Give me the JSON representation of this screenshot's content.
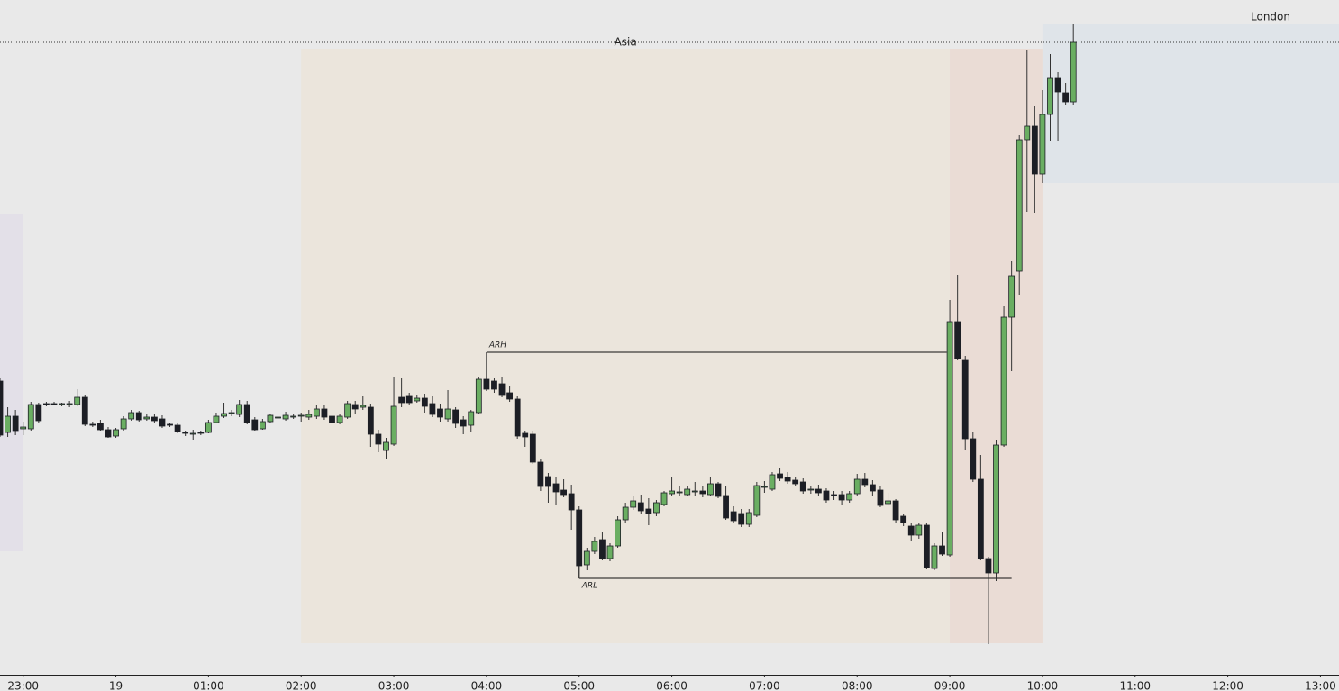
{
  "chart_data": {
    "type": "candlestick",
    "xlim": [
      -75,
      792
    ],
    "ylim": [
      51,
      800
    ],
    "xticks": [
      {
        "value": -60,
        "label": "23:00"
      },
      {
        "value": 0,
        "label": "19"
      },
      {
        "value": 60,
        "label": "01:00"
      },
      {
        "value": 120,
        "label": "02:00"
      },
      {
        "value": 180,
        "label": "03:00"
      },
      {
        "value": 240,
        "label": "04:00"
      },
      {
        "value": 300,
        "label": "05:00"
      },
      {
        "value": 360,
        "label": "06:00"
      },
      {
        "value": 420,
        "label": "07:00"
      },
      {
        "value": 480,
        "label": "08:00"
      },
      {
        "value": 540,
        "label": "09:00"
      },
      {
        "value": 600,
        "label": "10:00"
      },
      {
        "value": 660,
        "label": "11:00"
      },
      {
        "value": 720,
        "label": "12:00"
      },
      {
        "value": 780,
        "label": "13:00"
      }
    ],
    "up_color": "#6aae62",
    "down_color": "#1c1e25",
    "wick_color": "#333333",
    "hline": 753,
    "sessions": [
      {
        "start": -75,
        "end": -60,
        "high": 562,
        "low": 188,
        "color": "#e3e0e8"
      },
      {
        "name": "Asia",
        "start": 120,
        "end": 540,
        "high": 746,
        "low": 86,
        "color": "#ebe5dc"
      },
      {
        "start": 540,
        "end": 600,
        "high": 746,
        "low": 86,
        "color": "#eadcd5"
      },
      {
        "name": "London",
        "start": 600,
        "end": 792,
        "high": 773,
        "low": 597,
        "color": "#dfe4e9"
      }
    ],
    "levels": [
      {
        "label": "ARH",
        "value": 409,
        "start": 240,
        "end": 538
      },
      {
        "label": "ARL",
        "value": 158,
        "start": 300,
        "end": 580
      }
    ],
    "x": [
      -75,
      -70,
      -65,
      -60,
      -55,
      -50,
      -45,
      -40,
      -35,
      -30,
      -25,
      -20,
      -15,
      -10,
      -5,
      0,
      5,
      10,
      15,
      20,
      25,
      30,
      35,
      40,
      45,
      50,
      55,
      60,
      65,
      70,
      75,
      80,
      85,
      90,
      95,
      100,
      105,
      110,
      115,
      120,
      125,
      130,
      135,
      140,
      145,
      150,
      155,
      160,
      165,
      170,
      175,
      180,
      185,
      190,
      195,
      200,
      205,
      210,
      215,
      220,
      225,
      230,
      235,
      240,
      245,
      250,
      255,
      260,
      265,
      270,
      275,
      280,
      285,
      290,
      295,
      300,
      305,
      310,
      315,
      320,
      325,
      330,
      335,
      340,
      345,
      350,
      355,
      360,
      365,
      370,
      375,
      380,
      385,
      390,
      395,
      400,
      405,
      410,
      415,
      420,
      425,
      430,
      435,
      440,
      445,
      450,
      455,
      460,
      465,
      470,
      475,
      480,
      485,
      490,
      495,
      500,
      505,
      510,
      515,
      520,
      525,
      530,
      535,
      540,
      545,
      550,
      555,
      560,
      565,
      570,
      575,
      580,
      585,
      590,
      595,
      600,
      605,
      610,
      615,
      620
    ],
    "open": [
      377,
      320,
      338,
      324,
      324,
      351,
      352,
      352,
      351,
      351,
      351,
      359,
      329,
      330,
      323,
      316,
      324,
      335,
      342,
      335,
      337,
      335,
      329,
      328,
      320,
      319,
      320,
      320,
      331,
      338,
      341,
      340,
      351,
      334,
      324,
      332,
      336,
      335,
      338,
      338,
      337,
      338,
      346,
      338,
      331,
      337,
      351,
      348,
      348,
      318,
      300,
      307,
      359,
      361,
      355,
      358,
      352,
      346,
      335,
      345,
      334,
      328,
      342,
      379,
      377,
      374,
      364,
      357,
      319,
      318,
      287,
      271,
      263,
      256,
      252,
      234,
      173,
      188,
      201,
      180,
      194,
      223,
      237,
      242,
      235,
      231,
      240,
      252,
      253,
      251,
      254,
      255,
      251,
      263,
      250,
      232,
      230,
      218,
      228,
      259,
      257,
      274,
      270,
      267,
      265,
      256,
      257,
      255,
      251,
      251,
      245,
      252,
      268,
      262,
      256,
      241,
      244,
      227,
      216,
      206,
      217,
      169,
      194,
      184,
      443,
      400,
      313,
      268,
      180,
      164,
      306,
      448,
      499,
      645,
      660,
      607,
      673,
      713,
      697,
      687
    ],
    "high": [
      380,
      348,
      345,
      332,
      354,
      353,
      354,
      354,
      353,
      355,
      368,
      362,
      332,
      334,
      326,
      325,
      338,
      345,
      344,
      340,
      340,
      339,
      331,
      331,
      322,
      323,
      322,
      334,
      342,
      353,
      345,
      356,
      355,
      337,
      335,
      341,
      340,
      343,
      341,
      342,
      345,
      350,
      350,
      345,
      341,
      355,
      355,
      360,
      352,
      323,
      314,
      382,
      380,
      364,
      362,
      363,
      360,
      352,
      367,
      348,
      338,
      345,
      382,
      408,
      380,
      382,
      372,
      360,
      322,
      322,
      290,
      275,
      270,
      268,
      262,
      238,
      192,
      204,
      209,
      197,
      227,
      242,
      250,
      251,
      247,
      245,
      255,
      270,
      261,
      261,
      265,
      260,
      270,
      265,
      260,
      238,
      235,
      235,
      265,
      266,
      276,
      281,
      276,
      271,
      269,
      261,
      262,
      258,
      255,
      255,
      255,
      274,
      275,
      267,
      260,
      253,
      246,
      230,
      220,
      220,
      220,
      197,
      210,
      467,
      495,
      405,
      320,
      295,
      182,
      312,
      460,
      510,
      650,
      745,
      682,
      700,
      740,
      720,
      708,
      773
    ],
    "low": [
      315,
      315,
      317,
      317,
      322,
      330,
      349,
      350,
      349,
      348,
      349,
      327,
      326,
      322,
      314,
      314,
      322,
      333,
      332,
      333,
      330,
      325,
      326,
      319,
      316,
      312,
      317,
      319,
      330,
      336,
      338,
      337,
      329,
      322,
      323,
      331,
      333,
      333,
      335,
      332,
      334,
      335,
      334,
      329,
      329,
      335,
      340,
      345,
      304,
      298,
      290,
      305,
      348,
      350,
      353,
      342,
      337,
      332,
      332,
      325,
      318,
      320,
      340,
      366,
      364,
      359,
      354,
      313,
      304,
      285,
      255,
      242,
      240,
      248,
      212,
      160,
      167,
      185,
      178,
      177,
      192,
      220,
      234,
      230,
      217,
      227,
      238,
      249,
      250,
      249,
      250,
      248,
      249,
      247,
      223,
      219,
      215,
      215,
      226,
      253,
      255,
      266,
      263,
      260,
      252,
      252,
      250,
      242,
      245,
      240,
      242,
      250,
      259,
      250,
      237,
      238,
      220,
      216,
      200,
      202,
      168,
      167,
      183,
      182,
      400,
      300,
      265,
      178,
      85,
      155,
      304,
      388,
      473,
      565,
      564,
      597,
      644,
      643,
      684,
      684
    ],
    "close": [
      317,
      338,
      322,
      326,
      351,
      333,
      351,
      351,
      352,
      352,
      359,
      329,
      328,
      323,
      315,
      323,
      335,
      342,
      334,
      337,
      333,
      327,
      328,
      321,
      319,
      319,
      319,
      331,
      338,
      341,
      342,
      351,
      331,
      323,
      332,
      339,
      337,
      339,
      338,
      339,
      340,
      346,
      337,
      331,
      338,
      352,
      346,
      350,
      318,
      307,
      309,
      349,
      353,
      353,
      358,
      349,
      340,
      337,
      346,
      330,
      327,
      343,
      379,
      368,
      368,
      362,
      357,
      316,
      315,
      287,
      260,
      260,
      254,
      251,
      234,
      172,
      188,
      199,
      180,
      194,
      223,
      237,
      244,
      233,
      230,
      242,
      253,
      255,
      254,
      257,
      255,
      252,
      263,
      249,
      225,
      222,
      218,
      231,
      261,
      260,
      273,
      269,
      266,
      263,
      255,
      257,
      253,
      245,
      250,
      245,
      252,
      268,
      262,
      255,
      239,
      244,
      223,
      220,
      206,
      217,
      170,
      194,
      185,
      443,
      402,
      313,
      268,
      180,
      164,
      306,
      448,
      494,
      645,
      660,
      607,
      673,
      713,
      698,
      687,
      753
    ]
  }
}
